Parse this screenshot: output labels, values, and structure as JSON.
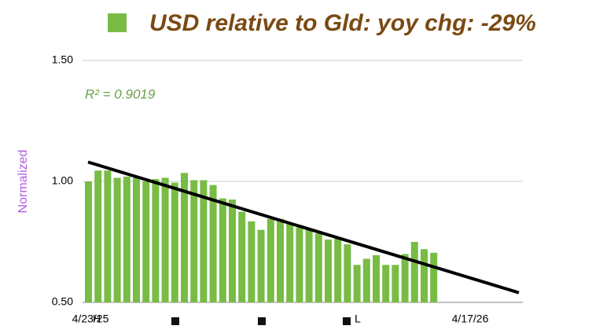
{
  "chart_data": {
    "type": "bar",
    "series": [
      {
        "name": "USD relative to Gld:  yoy chg: -29%",
        "color": "#78bc45",
        "values": [
          1.0,
          1.045,
          1.045,
          1.015,
          1.02,
          1.015,
          1.0,
          1.01,
          1.015,
          0.995,
          1.035,
          1.005,
          1.005,
          0.985,
          0.93,
          0.925,
          0.875,
          0.835,
          0.8,
          0.845,
          0.845,
          0.825,
          0.81,
          0.8,
          0.785,
          0.76,
          0.765,
          0.74,
          0.655,
          0.68,
          0.695,
          0.655,
          0.655,
          0.7,
          0.75,
          0.72,
          0.705
        ]
      }
    ],
    "ylabel": "Normalized",
    "ylim": [
      0.5,
      1.5
    ],
    "yticks": [
      {
        "value": 0.5,
        "label": "0.50"
      },
      {
        "value": 1.0,
        "label": "1.00"
      },
      {
        "value": 1.5,
        "label": "1.50"
      }
    ],
    "grid": true,
    "x_tick_labels": [
      "4/23/25",
      "4/17/26"
    ],
    "annotations": [
      "R² = 0.9019",
      "H",
      "L"
    ],
    "trendline": {
      "start": 1.08,
      "end": 0.54,
      "color": "#000000"
    }
  }
}
